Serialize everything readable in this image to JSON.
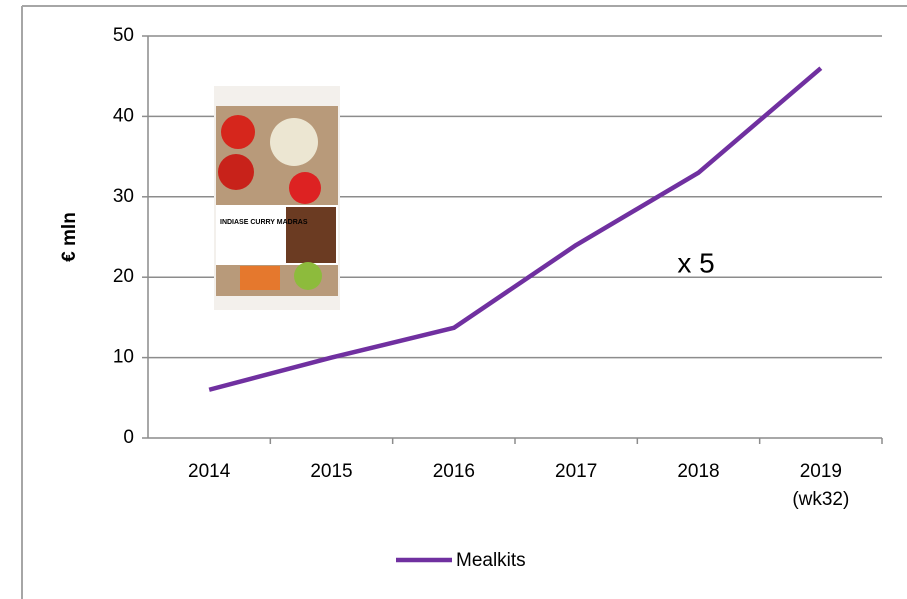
{
  "chart_data": {
    "type": "line",
    "categories": [
      "2014",
      "2015",
      "2016",
      "2017",
      "2018",
      "2019 (wk32)"
    ],
    "series": [
      {
        "name": "Mealkits",
        "color": "#7030a0",
        "values": [
          6,
          10,
          13.7,
          24,
          33,
          46
        ]
      }
    ],
    "ylabel": "€ mln",
    "ylim": [
      0,
      50
    ],
    "yticks": [
      0,
      10,
      20,
      30,
      40,
      50
    ],
    "grid": true,
    "annotation": "x 5",
    "image_label": "INDIASE CURRY MADRAS",
    "legend": "bottom"
  }
}
